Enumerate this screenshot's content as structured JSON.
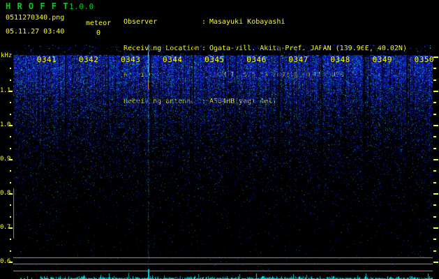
{
  "header": {
    "app_title": "H R O F F T",
    "version": "1.0.0",
    "filename": "0511270340.png",
    "mode_label": "meteor",
    "timestamp": "05.11.27 03:40",
    "echo_count": "0",
    "info_separator": ":",
    "info_rows": [
      {
        "label": "Observer",
        "value": "Masayuki Kobayashi"
      },
      {
        "label": "Receiving Location",
        "value": "Ogata-vill. Akita-Pref. JAPAN (139.96E, 40.02N)"
      },
      {
        "label": "Receiver",
        "value": "ICOM IC-575 53.7492(@LCD)MHz USB"
      },
      {
        "label": "Receiving antenna",
        "value": "A504HB(yagi 4el)"
      }
    ]
  },
  "spectrogram": {
    "unit_label": "kHz",
    "freq_tick_labels": [
      "1.1",
      "1.0",
      "0.9",
      "0.8",
      "0.7",
      "0.6"
    ],
    "time_labels": [
      "0341",
      "0342",
      "0343",
      "0344",
      "0345",
      "0346",
      "0347",
      "0348",
      "0349",
      "0350"
    ],
    "colors": {
      "background": "#000000",
      "label_yellow": "#ffff00",
      "title_green": "#00cc22",
      "noise_blue": "#1133ee",
      "noise_cyan": "#00d8e8",
      "noise_green": "#22dd88",
      "carrier_orange": "#e19b23",
      "grid_gray": "#9a9a9a",
      "meter_cyan": "#00d8d8"
    }
  }
}
